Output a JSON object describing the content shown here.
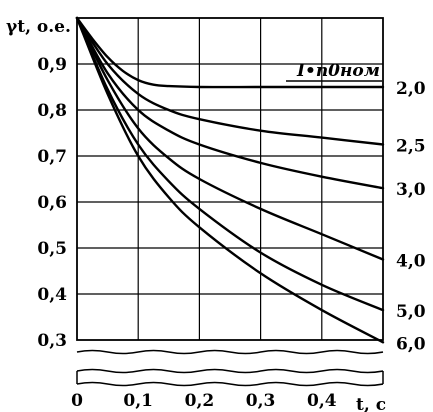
{
  "chart_data": {
    "type": "line",
    "ylabel": "γt, о.е.",
    "xlabel": "t, с",
    "legend_title": "I•п0ном",
    "xlim": [
      0,
      0.5
    ],
    "ylim": [
      0.3,
      1.0
    ],
    "x_ticks": [
      "0",
      "0,1",
      "0,2",
      "0,3",
      "0,4"
    ],
    "y_ticks": [
      "0,3",
      "0,4",
      "0,5",
      "0,6",
      "0,7",
      "0,8",
      "0,9"
    ],
    "grid": true,
    "series": [
      {
        "name": "2,0",
        "x": [
          0,
          0.025,
          0.05,
          0.075,
          0.1,
          0.125,
          0.15,
          0.2,
          0.3,
          0.4,
          0.5
        ],
        "y": [
          1.0,
          0.955,
          0.915,
          0.885,
          0.865,
          0.855,
          0.852,
          0.85,
          0.85,
          0.85,
          0.85
        ]
      },
      {
        "name": "2,5",
        "x": [
          0,
          0.05,
          0.1,
          0.15,
          0.2,
          0.3,
          0.4,
          0.5
        ],
        "y": [
          1.0,
          0.9,
          0.835,
          0.8,
          0.78,
          0.755,
          0.74,
          0.725
        ]
      },
      {
        "name": "3,0",
        "x": [
          0,
          0.05,
          0.1,
          0.15,
          0.2,
          0.3,
          0.4,
          0.5
        ],
        "y": [
          1.0,
          0.88,
          0.8,
          0.755,
          0.725,
          0.685,
          0.655,
          0.63
        ]
      },
      {
        "name": "4,0",
        "x": [
          0,
          0.05,
          0.1,
          0.15,
          0.2,
          0.3,
          0.4,
          0.5
        ],
        "y": [
          1.0,
          0.865,
          0.76,
          0.695,
          0.65,
          0.585,
          0.53,
          0.475
        ]
      },
      {
        "name": "5,0",
        "x": [
          0,
          0.05,
          0.1,
          0.15,
          0.2,
          0.3,
          0.4,
          0.5
        ],
        "y": [
          1.0,
          0.845,
          0.725,
          0.645,
          0.585,
          0.49,
          0.42,
          0.365
        ]
      },
      {
        "name": "6,0",
        "x": [
          0,
          0.05,
          0.1,
          0.15,
          0.2,
          0.3,
          0.4,
          0.5
        ],
        "y": [
          1.0,
          0.835,
          0.7,
          0.61,
          0.545,
          0.445,
          0.365,
          0.295
        ]
      }
    ]
  }
}
